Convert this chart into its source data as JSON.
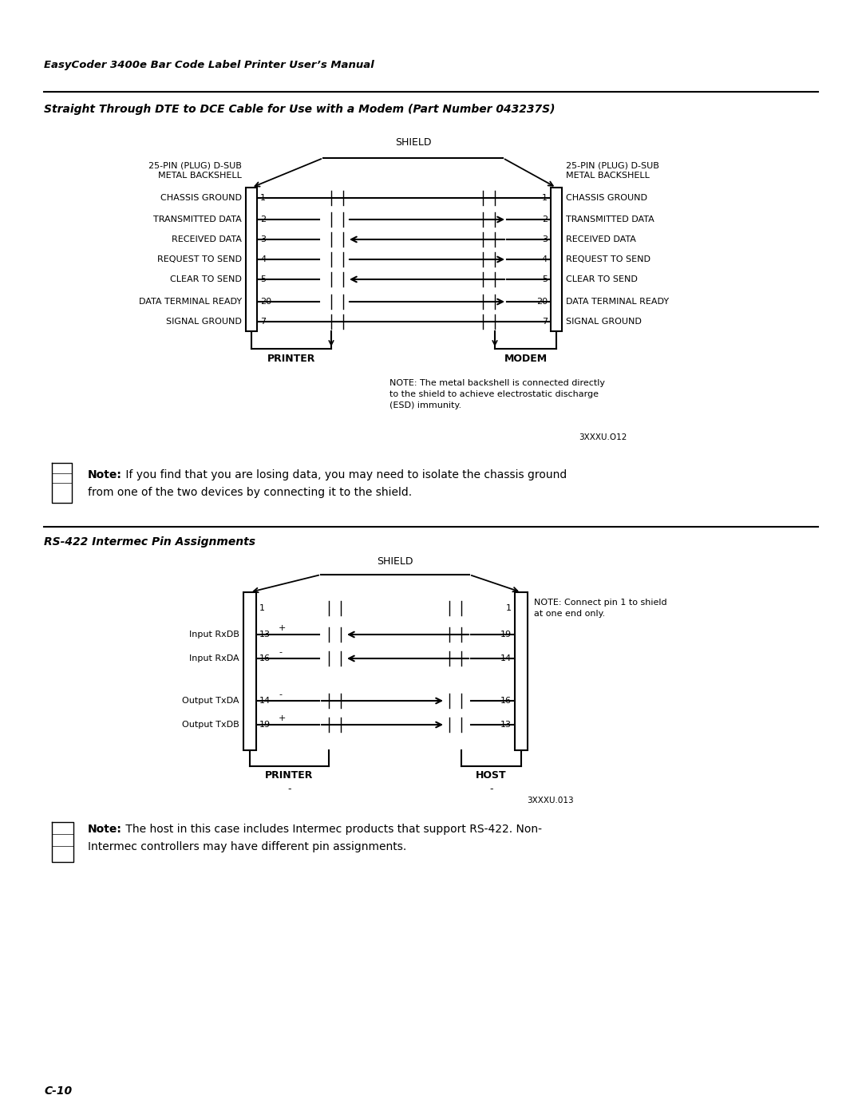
{
  "page_title": "EasyCoder 3400e Bar Code Label Printer User’s Manual",
  "section1_title": "Straight Through DTE to DCE Cable for Use with a Modem (Part Number 043237S)",
  "section2_title": "RS-422 Intermec Pin Assignments",
  "bg_color": "#ffffff",
  "text_color": "#000000",
  "page_number": "C-10",
  "diag1": {
    "shield_label": "SHIELD",
    "left_label": "25-PIN (PLUG) D-SUB\nMETAL BACKSHELL",
    "right_label": "25-PIN (PLUG) D-SUB\nMETAL BACKSHELL",
    "bottom_left": "PRINTER",
    "bottom_right": "MODEM",
    "note": "NOTE: The metal backshell is connected directly\nto the shield to achieve electrostatic discharge\n(ESD) immunity.",
    "ref": "3XXXU.O12",
    "rows": [
      {
        "left_label": "CHASSIS GROUND",
        "left_pin": "1",
        "right_pin": "1",
        "right_label": "CHASSIS GROUND",
        "arrow": "none"
      },
      {
        "left_label": "TRANSMITTED DATA",
        "left_pin": "2",
        "right_pin": "2",
        "right_label": "TRANSMITTED DATA",
        "arrow": "right"
      },
      {
        "left_label": "RECEIVED DATA",
        "left_pin": "3",
        "right_pin": "3",
        "right_label": "RECEIVED DATA",
        "arrow": "left"
      },
      {
        "left_label": "REQUEST TO SEND",
        "left_pin": "4",
        "right_pin": "4",
        "right_label": "REQUEST TO SEND",
        "arrow": "right"
      },
      {
        "left_label": "CLEAR TO SEND",
        "left_pin": "5",
        "right_pin": "5",
        "right_label": "CLEAR TO SEND",
        "arrow": "left"
      },
      {
        "left_label": "DATA TERMINAL READY",
        "left_pin": "20",
        "right_pin": "20",
        "right_label": "DATA TERMINAL READY",
        "arrow": "right"
      },
      {
        "left_label": "SIGNAL GROUND",
        "left_pin": "7",
        "right_pin": "7",
        "right_label": "SIGNAL GROUND",
        "arrow": "none"
      }
    ]
  },
  "diag2": {
    "shield_label": "SHIELD",
    "bottom_left": "PRINTER",
    "bottom_right": "HOST",
    "ref": "3XXXU.013",
    "note_right": "NOTE: Connect pin 1 to shield\nat one end only.",
    "rows": [
      {
        "left_label": "Input RxDB",
        "left_pin": "13",
        "right_pin": "19",
        "arrow": "left",
        "left_sign": "+"
      },
      {
        "left_label": "Input RxDA",
        "left_pin": "16",
        "right_pin": "14",
        "arrow": "left",
        "left_sign": "-"
      },
      {
        "left_label": "Output TxDA",
        "left_pin": "14",
        "right_pin": "16",
        "arrow": "right",
        "left_sign": "-"
      },
      {
        "left_label": "Output TxDB",
        "left_pin": "19",
        "right_pin": "13",
        "arrow": "right",
        "left_sign": "+"
      }
    ]
  },
  "note1_bold": "Note:",
  "note1_text": " If you find that you are losing data, you may need to isolate the chassis ground\nfrom one of the two devices by connecting it to the shield.",
  "note2_bold": "Note:",
  "note2_text": " The host in this case includes Intermec products that support RS-422. Non-\nIntermec controllers may have different pin assignments."
}
